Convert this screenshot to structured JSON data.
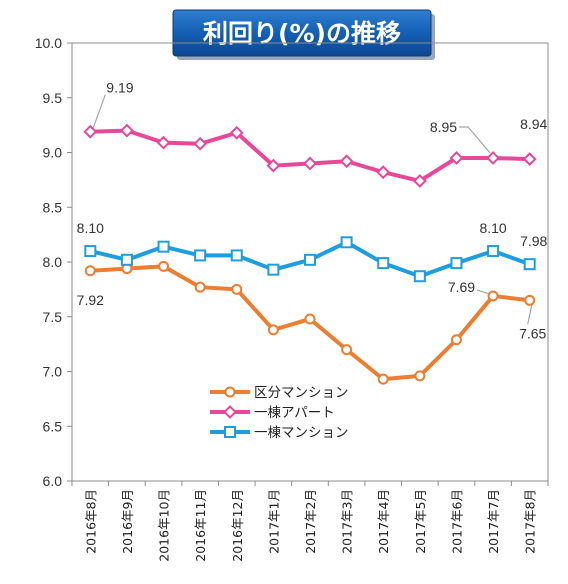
{
  "chart_data": {
    "type": "line",
    "title": "利回り(%)の推移",
    "categories": [
      "2016年8月",
      "2016年9月",
      "2016年10月",
      "2016年11月",
      "2016年12月",
      "2017年1月",
      "2017年2月",
      "2017年3月",
      "2017年4月",
      "2017年5月",
      "2017年6月",
      "2017年7月",
      "2017年8月"
    ],
    "ylim": [
      6.0,
      10.0
    ],
    "yticks": [
      "6.0",
      "6.5",
      "7.0",
      "7.5",
      "8.0",
      "8.5",
      "9.0",
      "9.5",
      "10.0"
    ],
    "xlabel": "",
    "ylabel": "",
    "grid": "none",
    "legend_position": "bottom-center",
    "series": [
      {
        "name": "区分マンション",
        "color": "#ED7D31",
        "marker": "circle",
        "values": [
          7.92,
          7.94,
          7.96,
          7.77,
          7.75,
          7.38,
          7.48,
          7.2,
          6.93,
          6.96,
          7.29,
          7.69,
          7.65
        ]
      },
      {
        "name": "一棟アパート",
        "color": "#E8479A",
        "marker": "diamond",
        "values": [
          9.19,
          9.2,
          9.09,
          9.08,
          9.18,
          8.88,
          8.9,
          8.92,
          8.82,
          8.74,
          8.95,
          8.95,
          8.94
        ]
      },
      {
        "name": "一棟マンション",
        "color": "#1E9DE0",
        "marker": "square",
        "values": [
          8.1,
          8.02,
          8.14,
          8.06,
          8.06,
          7.93,
          8.02,
          8.18,
          7.99,
          7.87,
          7.99,
          8.1,
          7.98
        ]
      }
    ],
    "annotations": [
      {
        "text": "9.19",
        "series": 1,
        "point": 0
      },
      {
        "text": "8.95",
        "series": 1,
        "point": 11
      },
      {
        "text": "8.94",
        "series": 1,
        "point": 12
      },
      {
        "text": "8.10",
        "series": 2,
        "point": 0
      },
      {
        "text": "8.10",
        "series": 2,
        "point": 11
      },
      {
        "text": "7.98",
        "series": 2,
        "point": 12
      },
      {
        "text": "7.92",
        "series": 0,
        "point": 0
      },
      {
        "text": "7.69",
        "series": 0,
        "point": 11
      },
      {
        "text": "7.65",
        "series": 0,
        "point": 12
      }
    ]
  }
}
